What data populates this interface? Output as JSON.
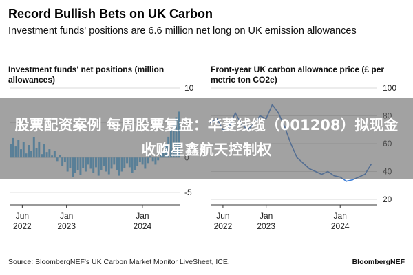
{
  "header": {
    "title": "Record Bullish Bets on UK Carbon",
    "subtitle": "Investment funds' positions are 6.6 million net long on UK emission allowances"
  },
  "chart_data": [
    {
      "type": "bar",
      "title": "Investment funds' net positions (million allowances)",
      "x_ticks": [
        {
          "date": "2022-06",
          "line1": "Jun",
          "line2": "2022"
        },
        {
          "date": "2023-01",
          "line1": "Jan",
          "line2": "2023"
        },
        {
          "date": "2024-01",
          "line1": "Jan",
          "line2": "2024"
        }
      ],
      "xlim": [
        "2022-04",
        "2024-07"
      ],
      "y_ticks": [
        10,
        5,
        0,
        -5
      ],
      "ylim": [
        -6,
        10
      ],
      "color": "#49a9e3",
      "values": [
        2.0,
        2.8,
        1.6,
        2.5,
        1.2,
        2.2,
        0.6,
        1.8,
        1.0,
        2.9,
        1.4,
        2.3,
        0.5,
        1.9,
        0.8,
        1.2,
        0.3,
        1.0,
        -0.5,
        0.4,
        -1.2,
        -0.6,
        -2.0,
        -1.5,
        -2.8,
        -2.2,
        -1.8,
        -2.5,
        -1.5,
        -2.0,
        -1.0,
        -1.6,
        -2.2,
        -1.4,
        -2.6,
        -1.8,
        -1.2,
        -2.0,
        -2.4,
        -1.6,
        -1.0,
        -1.8,
        -2.6,
        -2.0,
        -1.5,
        -0.8,
        -1.4,
        -2.2,
        -1.8,
        -1.2,
        -0.6,
        -1.0,
        -1.6,
        -0.8,
        0.2,
        -0.5,
        -1.0,
        -0.4,
        0.5,
        1.0,
        2.0,
        3.0,
        4.0,
        5.0,
        5.8,
        6.6
      ]
    },
    {
      "type": "line",
      "title": "Front-year UK carbon allowance price (£ per metric ton CO2e)",
      "x_ticks": [
        {
          "date": "2022-06",
          "line1": "Jun",
          "line2": "2022"
        },
        {
          "date": "2023-01",
          "line1": "Jan",
          "line2": "2023"
        },
        {
          "date": "2024-01",
          "line1": "Jan",
          "line2": "2024"
        }
      ],
      "xlim": [
        "2022-04",
        "2024-07"
      ],
      "y_ticks": [
        100,
        80,
        60,
        40,
        20
      ],
      "ylim": [
        20,
        100
      ],
      "color": "#3c7ed8",
      "series": [
        {
          "x": "2022-04",
          "y": 75
        },
        {
          "x": "2022-05",
          "y": 78
        },
        {
          "x": "2022-06",
          "y": 70
        },
        {
          "x": "2022-07",
          "y": 72
        },
        {
          "x": "2022-08",
          "y": 82
        },
        {
          "x": "2022-09",
          "y": 74
        },
        {
          "x": "2022-10",
          "y": 70
        },
        {
          "x": "2022-11",
          "y": 74
        },
        {
          "x": "2022-12",
          "y": 80
        },
        {
          "x": "2023-01",
          "y": 78
        },
        {
          "x": "2023-02",
          "y": 88
        },
        {
          "x": "2023-03",
          "y": 82
        },
        {
          "x": "2023-04",
          "y": 72
        },
        {
          "x": "2023-05",
          "y": 60
        },
        {
          "x": "2023-06",
          "y": 50
        },
        {
          "x": "2023-07",
          "y": 46
        },
        {
          "x": "2023-08",
          "y": 42
        },
        {
          "x": "2023-09",
          "y": 40
        },
        {
          "x": "2023-10",
          "y": 38
        },
        {
          "x": "2023-11",
          "y": 40
        },
        {
          "x": "2023-12",
          "y": 37
        },
        {
          "x": "2024-01",
          "y": 36
        },
        {
          "x": "2024-02",
          "y": 33
        },
        {
          "x": "2024-03",
          "y": 34
        },
        {
          "x": "2024-04",
          "y": 36
        },
        {
          "x": "2024-05",
          "y": 38
        },
        {
          "x": "2024-06",
          "y": 45
        }
      ]
    }
  ],
  "overlay": {
    "headline": "股票配资案例 每周股票复盘：华菱线缆（001208）拟现金收购星鑫航天控制权"
  },
  "footer": {
    "source": "Source: BloombergNEF's UK Carbon Market Monitor LiveSheet, ICE.",
    "brand": "BloombergNEF"
  }
}
